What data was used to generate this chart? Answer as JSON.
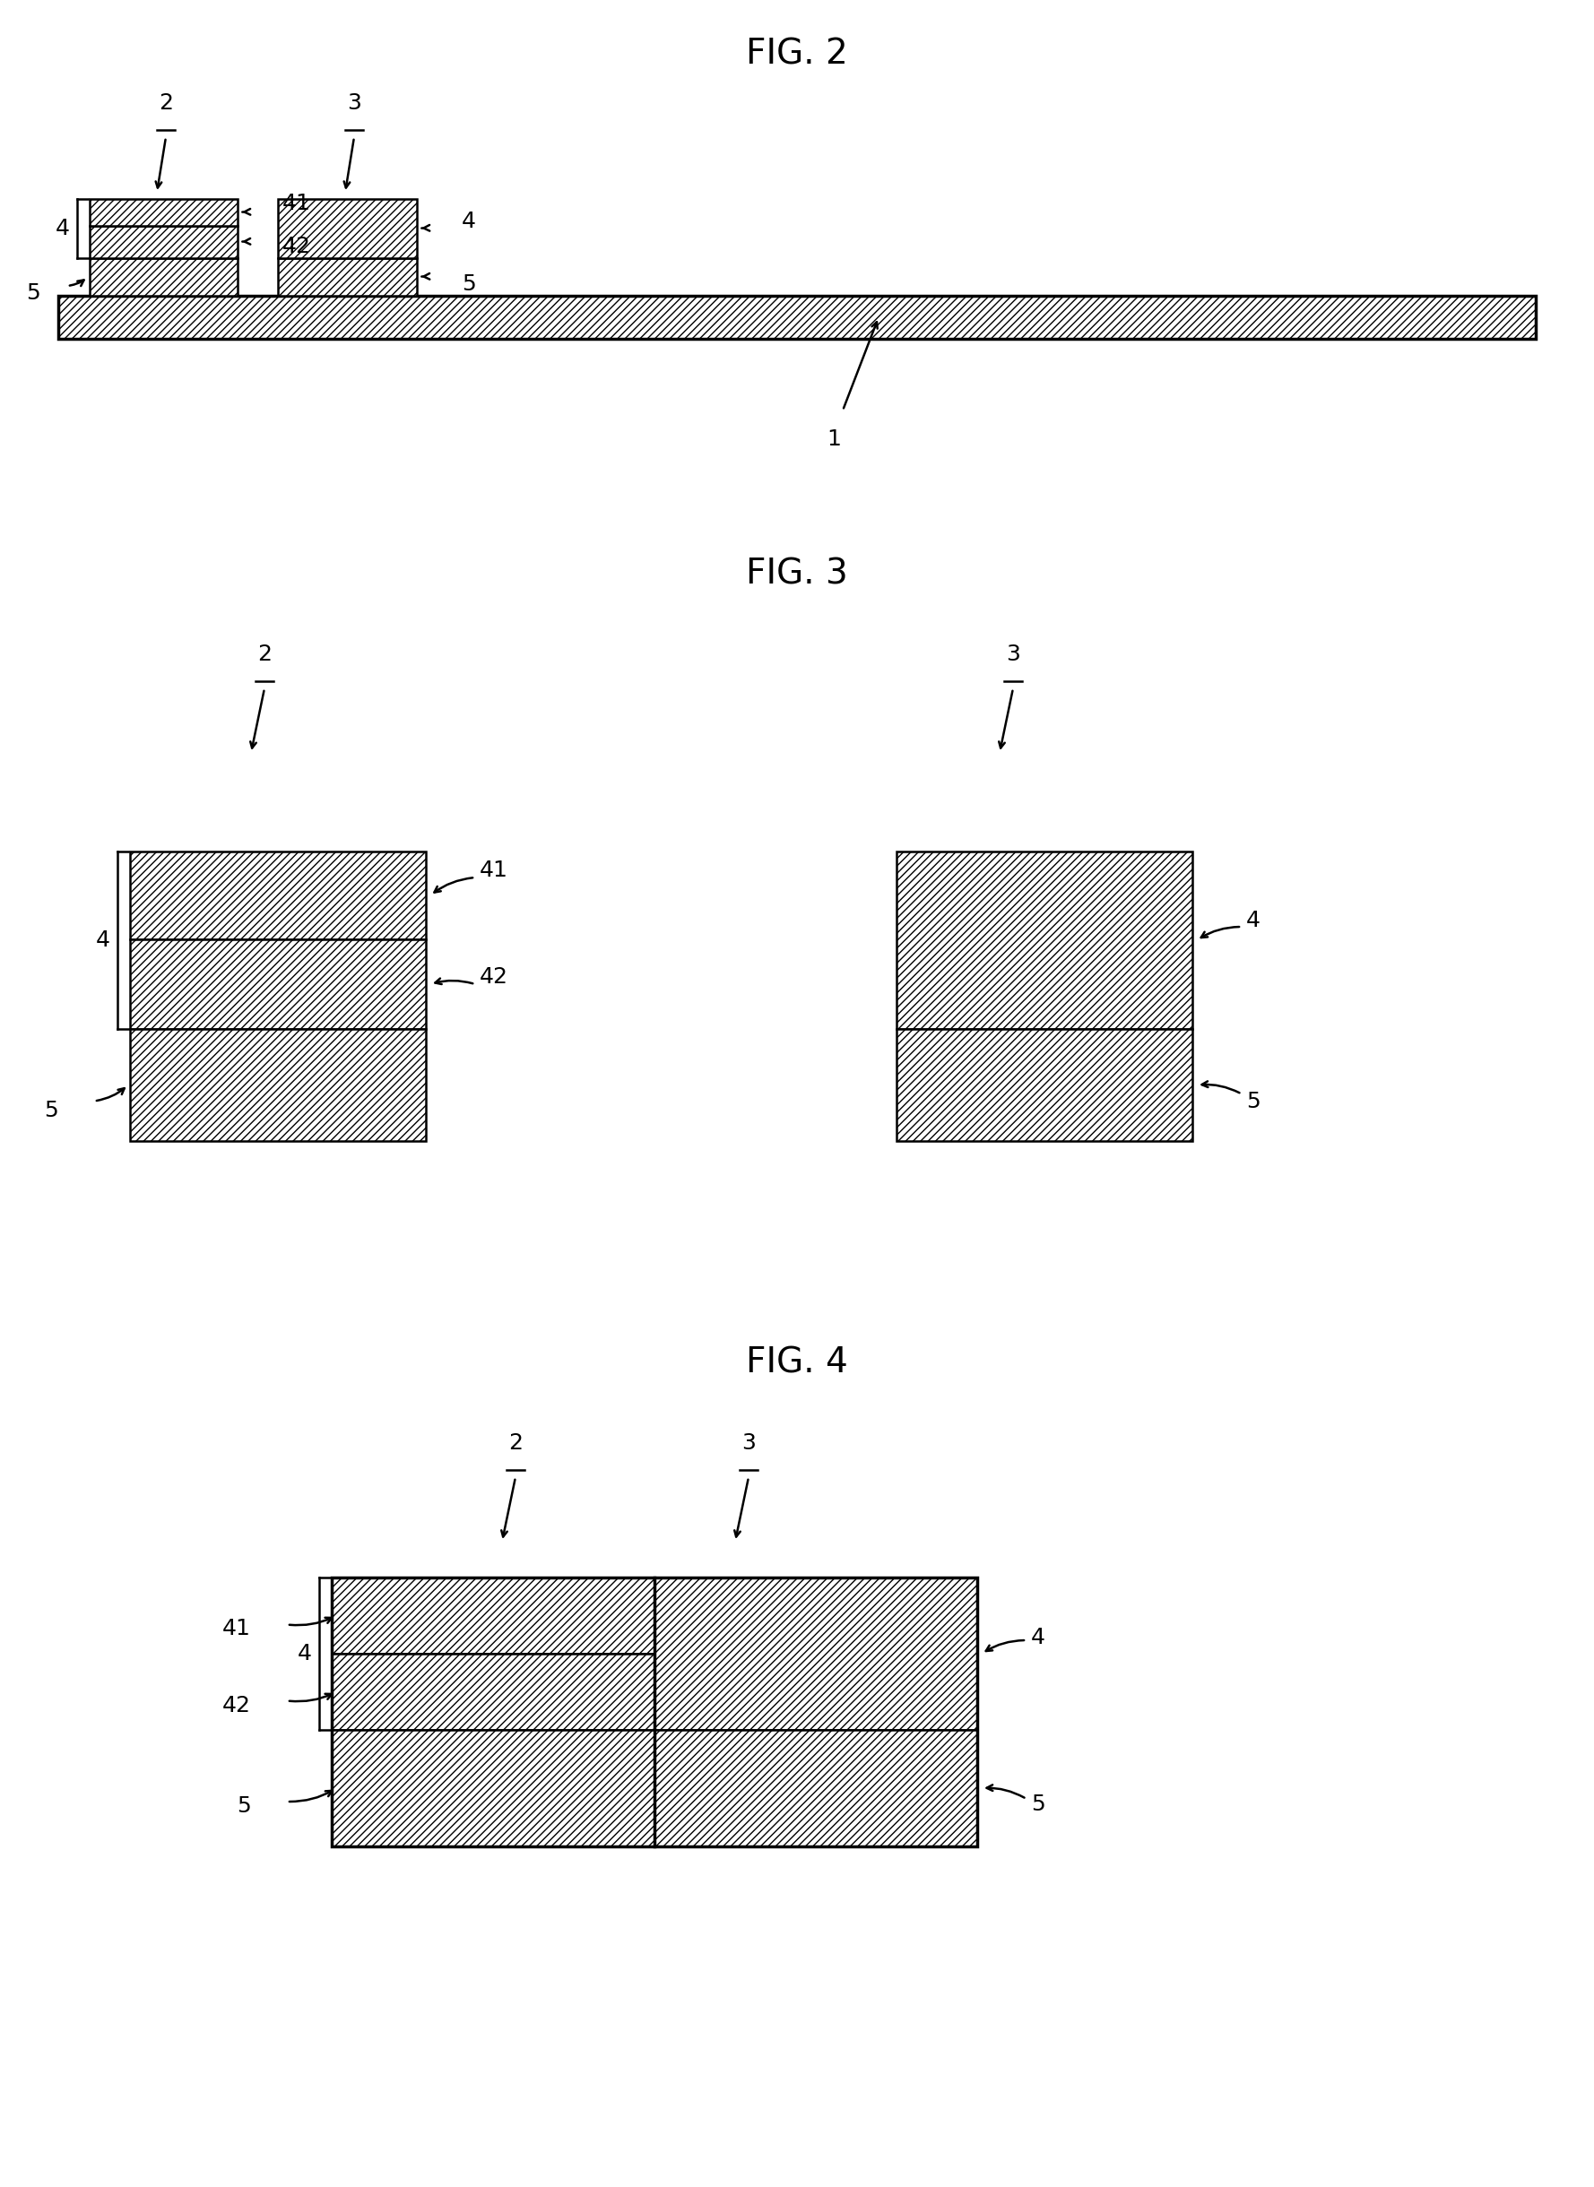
{
  "fig2_title": "FIG. 2",
  "fig3_title": "FIG. 3",
  "fig4_title": "FIG. 4",
  "background_color": "#ffffff",
  "title_fontsize": 28,
  "label_fontsize": 18,
  "lw": 1.8,
  "lw_thick": 2.5,
  "hatch": "////"
}
